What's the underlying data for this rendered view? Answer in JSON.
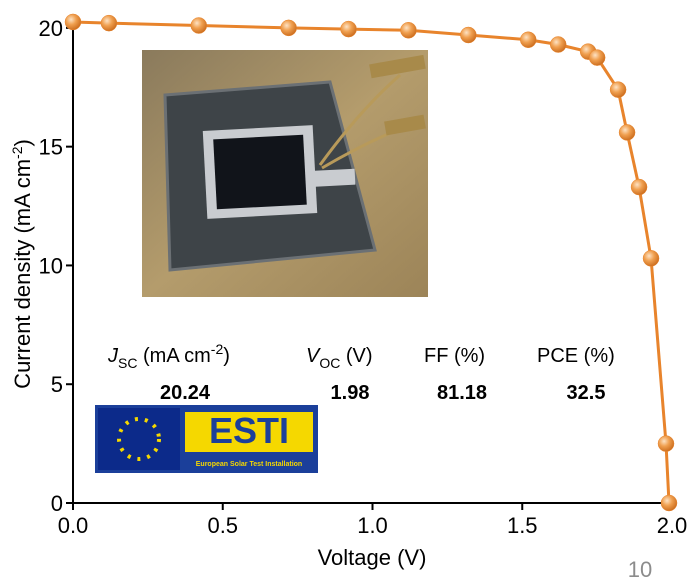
{
  "chart_data": {
    "type": "line",
    "x_label": "Voltage (V)",
    "y_label": {
      "text": "Current density (mA cm",
      "sup": "-2",
      "end": ")"
    },
    "x": [
      0.0,
      0.12,
      0.42,
      0.72,
      0.92,
      1.12,
      1.32,
      1.52,
      1.62,
      1.72,
      1.75,
      1.82,
      1.85,
      1.89,
      1.93,
      1.98,
      1.99
    ],
    "series": [
      {
        "name": "J-V",
        "color": "#e8842c",
        "values": [
          20.25,
          20.2,
          20.1,
          20.0,
          19.95,
          19.9,
          19.7,
          19.5,
          19.3,
          19.0,
          18.75,
          17.4,
          15.6,
          13.3,
          10.3,
          2.5,
          0
        ]
      }
    ],
    "xlim": [
      0,
      2.0
    ],
    "ylim": [
      0,
      20.5
    ],
    "xticks": [
      {
        "value": 0,
        "label": "0.0"
      },
      {
        "value": 0.5,
        "label": "0.5"
      },
      {
        "value": 1.0,
        "label": "1.0"
      },
      {
        "value": 1.5,
        "label": "1.5"
      },
      {
        "value": 2.0,
        "label": "2.0"
      }
    ],
    "yticks": [
      0,
      5,
      10,
      15,
      20
    ],
    "table": {
      "headers": [
        {
          "symbol": "J",
          "sub": "SC",
          "unit": " (mA cm",
          "sup": "-2",
          "end": ")"
        },
        {
          "symbol": "V",
          "sub": "OC",
          "unit": " (V)"
        },
        {
          "unit": "FF (%)"
        },
        {
          "unit": "PCE (%)"
        }
      ],
      "values": [
        20.24,
        1.98,
        81.18,
        32.5
      ]
    },
    "logo": {
      "text": "ESTI",
      "caption": "European Solar Test Installation"
    }
  },
  "page_number": "10"
}
